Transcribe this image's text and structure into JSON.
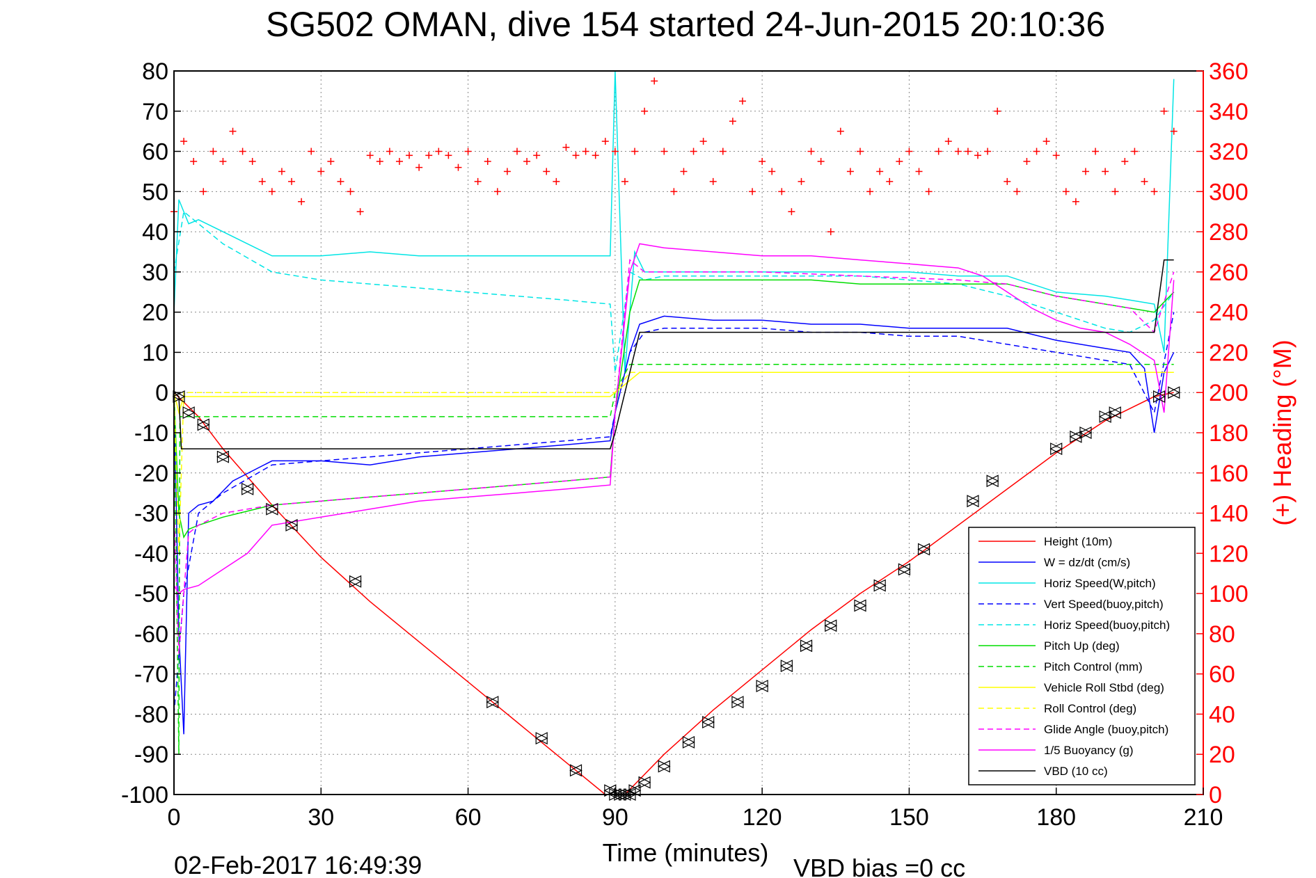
{
  "chart_data": {
    "type": "line",
    "title": "SG502 OMAN, dive 154 started 24-Jun-2015 20:10:36",
    "xlabel": "Time (minutes)",
    "ylabel_right": "(+) Heading (°M)",
    "xlim": [
      0,
      210
    ],
    "ylim_left": [
      -100,
      80
    ],
    "ylim_right": [
      0,
      360
    ],
    "x_ticks": [
      "0",
      "30",
      "60",
      "90",
      "120",
      "150",
      "180",
      "210"
    ],
    "y_ticks_left": [
      "80",
      "70",
      "60",
      "50",
      "40",
      "30",
      "20",
      "10",
      "0",
      "-10",
      "-20",
      "-30",
      "-40",
      "-50",
      "-60",
      "-70",
      "-80",
      "-90",
      "-100"
    ],
    "y_ticks_right": [
      "360",
      "340",
      "320",
      "300",
      "280",
      "260",
      "240",
      "220",
      "200",
      "180",
      "160",
      "140",
      "120",
      "100",
      "80",
      "60",
      "40",
      "20",
      "0"
    ],
    "grid": true,
    "footer_left": "02-Feb-2017 16:49:39",
    "footer_right": "VBD bias =0 cc",
    "legend_position": "bottom-right",
    "series": [
      {
        "name": "Height (10m)",
        "color": "#ff0000",
        "style": "solid",
        "x": [
          0,
          5,
          10,
          20,
          30,
          40,
          50,
          60,
          70,
          80,
          88,
          92,
          100,
          110,
          120,
          130,
          140,
          150,
          160,
          170,
          180,
          190,
          200,
          204
        ],
        "y": [
          0,
          -6,
          -14,
          -28,
          -41,
          -52,
          -62,
          -72,
          -82,
          -92,
          -100,
          -100,
          -90,
          -79,
          -69,
          -59,
          -50,
          -42,
          -33,
          -24,
          -15,
          -7,
          -1,
          0
        ]
      },
      {
        "name": "W = dz/dt (cm/s)",
        "color": "#0000ff",
        "style": "solid",
        "x": [
          0,
          1,
          2,
          3,
          5,
          8,
          12,
          20,
          30,
          40,
          50,
          60,
          70,
          80,
          89,
          90,
          93,
          95,
          100,
          110,
          120,
          130,
          140,
          150,
          160,
          170,
          180,
          190,
          195,
          198,
          200,
          202,
          204
        ],
        "y": [
          0,
          -60,
          -85,
          -30,
          -28,
          -27,
          -22,
          -17,
          -17,
          -18,
          -16,
          -15,
          -14,
          -13,
          -12,
          -5,
          10,
          17,
          19,
          18,
          18,
          17,
          17,
          16,
          16,
          16,
          13,
          11,
          10,
          6,
          -10,
          5,
          10
        ]
      },
      {
        "name": "Horiz Speed(W,pitch)",
        "color": "#00e5e5",
        "style": "solid",
        "x": [
          0,
          1,
          3,
          5,
          10,
          15,
          20,
          30,
          40,
          50,
          60,
          70,
          80,
          89,
          90,
          92,
          94,
          96,
          100,
          110,
          120,
          130,
          140,
          150,
          160,
          170,
          180,
          190,
          195,
          200,
          202,
          204
        ],
        "y": [
          20,
          48,
          42,
          43,
          40,
          37,
          34,
          34,
          35,
          34,
          34,
          34,
          34,
          34,
          80,
          5,
          35,
          30,
          30,
          30,
          30,
          30,
          30,
          30,
          29,
          29,
          25,
          24,
          23,
          22,
          10,
          78
        ]
      },
      {
        "name": "Vert Speed(buoy,pitch)",
        "color": "#0000ff",
        "style": "dashed",
        "x": [
          0,
          2,
          5,
          10,
          20,
          30,
          40,
          50,
          60,
          70,
          80,
          89,
          90,
          93,
          96,
          100,
          110,
          120,
          130,
          140,
          150,
          160,
          170,
          180,
          190,
          195,
          200,
          204
        ],
        "y": [
          -80,
          -50,
          -30,
          -25,
          -18,
          -17,
          -16,
          -15,
          -14,
          -13,
          -12,
          -11,
          -5,
          10,
          15,
          16,
          16,
          16,
          15,
          15,
          14,
          14,
          12,
          10,
          8,
          7,
          -5,
          20
        ]
      },
      {
        "name": "Horiz Speed(buoy,pitch)",
        "color": "#00e5e5",
        "style": "dashed",
        "x": [
          0,
          2,
          5,
          10,
          20,
          30,
          40,
          50,
          60,
          70,
          80,
          89,
          90,
          93,
          96,
          100,
          110,
          120,
          130,
          140,
          150,
          160,
          170,
          180,
          190,
          195,
          200,
          204
        ],
        "y": [
          30,
          45,
          42,
          37,
          30,
          28,
          27,
          26,
          25,
          24,
          23,
          22,
          5,
          30,
          28,
          29,
          29,
          29,
          29,
          29,
          28,
          27,
          24,
          20,
          16,
          15,
          18,
          25
        ]
      },
      {
        "name": "Pitch Up (deg)",
        "color": "#00dd00",
        "style": "solid",
        "x": [
          0,
          1,
          2,
          3,
          5,
          10,
          20,
          30,
          40,
          50,
          60,
          70,
          80,
          89,
          90,
          93,
          95,
          100,
          110,
          120,
          130,
          140,
          150,
          160,
          170,
          180,
          190,
          195,
          200,
          204
        ],
        "y": [
          0,
          -30,
          -36,
          -34,
          -33,
          -31,
          -28,
          -27,
          -26,
          -25,
          -24,
          -23,
          -22,
          -21,
          -5,
          20,
          28,
          28,
          28,
          28,
          28,
          27,
          27,
          27,
          27,
          24,
          22,
          21,
          20,
          25
        ]
      },
      {
        "name": "Pitch Control (mm)",
        "color": "#00dd00",
        "style": "dashed",
        "x": [
          0,
          1,
          1.2,
          2,
          89,
          90,
          93,
          204
        ],
        "y": [
          0,
          -90,
          -6,
          -6,
          -6,
          0,
          7,
          7
        ]
      },
      {
        "name": "Vehicle Roll Stbd (deg)",
        "color": "#ffff00",
        "style": "solid",
        "x": [
          0,
          1,
          2,
          5,
          10,
          20,
          30,
          40,
          50,
          60,
          70,
          80,
          89,
          90,
          95,
          100,
          120,
          140,
          160,
          180,
          200,
          204
        ],
        "y": [
          0,
          -5,
          -1,
          -1,
          -1,
          -1,
          -1,
          -1,
          -1,
          -1,
          -1,
          -1,
          -1,
          0,
          5,
          5,
          5,
          5,
          5,
          5,
          5,
          5
        ]
      },
      {
        "name": "Roll Control (deg)",
        "color": "#ffff00",
        "style": "dashed",
        "x": [
          0,
          1,
          2,
          89,
          90,
          93,
          204
        ],
        "y": [
          0,
          -40,
          0,
          0,
          0,
          5,
          5
        ]
      },
      {
        "name": "Glide Angle (buoy,pitch)",
        "color": "#ff00ff",
        "style": "dashed",
        "x": [
          0,
          1,
          3,
          5,
          10,
          20,
          30,
          40,
          50,
          60,
          70,
          80,
          89,
          90,
          93,
          96,
          100,
          120,
          140,
          160,
          170,
          180,
          190,
          195,
          200,
          204
        ],
        "y": [
          -30,
          -65,
          -35,
          -33,
          -30,
          -28,
          -27,
          -26,
          -25,
          -24,
          -23,
          -22,
          -21,
          -5,
          33,
          30,
          30,
          30,
          29,
          28,
          27,
          24,
          22,
          21,
          15,
          30
        ]
      },
      {
        "name": "1/5 Buoyancy (g)",
        "color": "#ff00ff",
        "style": "solid",
        "x": [
          0,
          1,
          2,
          5,
          10,
          15,
          20,
          30,
          40,
          50,
          60,
          70,
          80,
          89,
          90,
          93,
          95,
          100,
          110,
          120,
          130,
          140,
          150,
          160,
          165,
          170,
          175,
          180,
          185,
          190,
          195,
          200,
          202,
          204
        ],
        "y": [
          -48,
          -50,
          -49,
          -48,
          -44,
          -40,
          -33,
          -31,
          -29,
          -27,
          -26,
          -25,
          -24,
          -23,
          -5,
          30,
          37,
          36,
          35,
          34,
          34,
          33,
          32,
          31,
          29,
          25,
          21,
          18,
          16,
          15,
          12,
          8,
          -5,
          28
        ]
      },
      {
        "name": "VBD (10 cc)",
        "color": "#000000",
        "style": "solid",
        "x": [
          0,
          1,
          1.5,
          30,
          60,
          89,
          90,
          93,
          95,
          100,
          130,
          160,
          170,
          180,
          190,
          195,
          200,
          202,
          204
        ],
        "y": [
          0,
          -1,
          -14,
          -14,
          -14,
          -14,
          -10,
          5,
          15,
          15,
          15,
          15,
          15,
          15,
          15,
          15,
          15,
          33,
          33
        ]
      }
    ],
    "heading": {
      "name": "(+) Heading (°M)",
      "color": "#ff0000",
      "axis": "right",
      "x": [
        0,
        2,
        4,
        6,
        8,
        10,
        12,
        14,
        16,
        18,
        20,
        22,
        24,
        26,
        28,
        30,
        32,
        34,
        36,
        38,
        40,
        42,
        44,
        46,
        48,
        50,
        52,
        54,
        56,
        58,
        60,
        62,
        64,
        66,
        68,
        70,
        72,
        74,
        76,
        78,
        80,
        82,
        84,
        86,
        88,
        90,
        92,
        94,
        96,
        98,
        100,
        102,
        104,
        106,
        108,
        110,
        112,
        114,
        116,
        118,
        120,
        122,
        124,
        126,
        128,
        130,
        132,
        134,
        136,
        138,
        140,
        142,
        144,
        146,
        148,
        150,
        152,
        154,
        156,
        158,
        160,
        162,
        164,
        166,
        168,
        170,
        172,
        174,
        176,
        178,
        180,
        182,
        184,
        186,
        188,
        190,
        192,
        194,
        196,
        198,
        200,
        202,
        204
      ],
      "y": [
        290,
        325,
        315,
        300,
        320,
        315,
        330,
        320,
        315,
        305,
        300,
        310,
        305,
        295,
        320,
        310,
        315,
        305,
        300,
        290,
        318,
        315,
        320,
        315,
        318,
        312,
        318,
        320,
        318,
        312,
        320,
        305,
        315,
        300,
        310,
        320,
        315,
        318,
        310,
        305,
        322,
        318,
        320,
        318,
        325,
        320,
        305,
        320,
        340,
        355,
        320,
        300,
        310,
        320,
        325,
        305,
        320,
        335,
        345,
        300,
        315,
        310,
        300,
        290,
        305,
        320,
        315,
        280,
        330,
        310,
        320,
        300,
        310,
        305,
        315,
        320,
        310,
        300,
        320,
        325,
        320,
        320,
        318,
        320,
        340,
        305,
        300,
        315,
        320,
        325,
        318,
        300,
        295,
        310,
        320,
        310,
        300,
        315,
        320,
        305,
        300,
        340,
        330
      ]
    },
    "markers": {
      "type": "triangle",
      "color": "#000000",
      "x": [
        1,
        3,
        6,
        10,
        15,
        20,
        24,
        37,
        65,
        75,
        82,
        89,
        90,
        91,
        92,
        93,
        94,
        96,
        100,
        105,
        109,
        115,
        120,
        125,
        129,
        134,
        140,
        144,
        149,
        153,
        163,
        167,
        180,
        184,
        186,
        190,
        192,
        201,
        204
      ],
      "y": [
        -1,
        -5,
        -8,
        -16,
        -24,
        -29,
        -33,
        -47,
        -77,
        -86,
        -94,
        -99,
        -100,
        -100,
        -100,
        -100,
        -99,
        -97,
        -93,
        -87,
        -82,
        -77,
        -73,
        -68,
        -63,
        -58,
        -53,
        -48,
        -44,
        -39,
        -27,
        -22,
        -14,
        -11,
        -10,
        -6,
        -5,
        -1,
        0
      ]
    }
  }
}
